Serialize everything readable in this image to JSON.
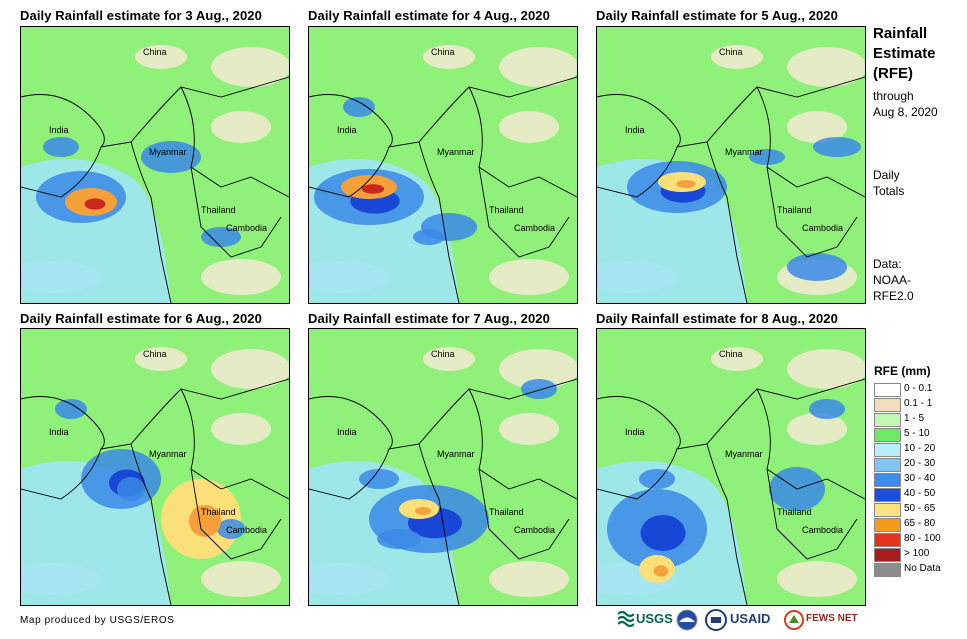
{
  "panels": [
    {
      "title": "Daily Rainfall estimate for 3 Aug., 2020",
      "labels": [
        "China",
        "India",
        "Myanmar",
        "Thailand",
        "Cambodia"
      ],
      "colors": {
        "base": "#8ff07a",
        "mid": "#9fe6f5",
        "heavy": "#3b88e6",
        "peak": "#1847d6",
        "spot1": "#f5a03a",
        "spot2": "#c8281e"
      }
    },
    {
      "title": "Daily Rainfall estimate for 4 Aug., 2020",
      "labels": [
        "China",
        "India",
        "Myanmar",
        "Thailand",
        "Cambodia"
      ],
      "colors": {
        "base": "#8ff07a",
        "mid": "#9fe6f5",
        "heavy": "#3b88e6",
        "peak": "#1847d6",
        "spot1": "#f5a03a",
        "spot2": "#c8281e"
      }
    },
    {
      "title": "Daily Rainfall estimate for 5 Aug., 2020",
      "labels": [
        "China",
        "India",
        "Myanmar",
        "Thailand",
        "Cambodia"
      ],
      "colors": {
        "base": "#8ff07a",
        "mid": "#9fe6f5",
        "heavy": "#3b88e6",
        "peak": "#1847d6",
        "spot1": "#fbe07a",
        "spot2": "#f5a03a"
      }
    },
    {
      "title": "Daily Rainfall estimate for 6 Aug., 2020",
      "labels": [
        "China",
        "India",
        "Myanmar",
        "Thailand",
        "Cambodia"
      ],
      "colors": {
        "base": "#8ff07a",
        "mid": "#9fe6f5",
        "heavy": "#3b88e6",
        "peak": "#1847d6",
        "spot1": "#fbe07a",
        "spot2": "#f5a03a"
      }
    },
    {
      "title": "Daily Rainfall estimate for 7 Aug., 2020",
      "labels": [
        "China",
        "India",
        "Myanmar",
        "Thailand",
        "Cambodia"
      ],
      "colors": {
        "base": "#8ff07a",
        "mid": "#9fe6f5",
        "heavy": "#3b88e6",
        "peak": "#1847d6",
        "spot1": "#fbe07a",
        "spot2": "#f5a03a"
      }
    },
    {
      "title": "Daily Rainfall estimate for 8 Aug., 2020",
      "labels": [
        "China",
        "India",
        "Myanmar",
        "Thailand",
        "Cambodia"
      ],
      "colors": {
        "base": "#8ff07a",
        "mid": "#9fe6f5",
        "heavy": "#3b88e6",
        "peak": "#1847d6",
        "spot1": "#fbe07a",
        "spot2": "#f5a03a"
      }
    }
  ],
  "sidebar": {
    "title_lines": [
      "Rainfall",
      "Estimate",
      "(RFE)"
    ],
    "through": [
      "through",
      "Aug 8, 2020"
    ],
    "totals": [
      "Daily",
      "Totals"
    ],
    "data_source": [
      "Data:",
      "NOAA-",
      "RFE2.0"
    ]
  },
  "legend": {
    "title": "RFE (mm)",
    "items": [
      {
        "label": "0 - 0.1",
        "color": "#ffffff"
      },
      {
        "label": "0.1 - 1",
        "color": "#f2dfc0"
      },
      {
        "label": "1 - 5",
        "color": "#c2f7b4"
      },
      {
        "label": "5 - 10",
        "color": "#6fe866"
      },
      {
        "label": "10 - 20",
        "color": "#b6eefb"
      },
      {
        "label": "20 - 30",
        "color": "#7cc5f5"
      },
      {
        "label": "30 - 40",
        "color": "#3e8cee"
      },
      {
        "label": "40 - 50",
        "color": "#1c4ee0"
      },
      {
        "label": "50 - 65",
        "color": "#fbe37f"
      },
      {
        "label": "65 - 80",
        "color": "#f59b1c"
      },
      {
        "label": "80 - 100",
        "color": "#e4341e"
      },
      {
        "label": "> 100",
        "color": "#a81e1e"
      },
      {
        "label": "No Data",
        "color": "#8c8c8c"
      }
    ]
  },
  "credit": "Map produced by USGS/EROS",
  "logos": {
    "usgs": "USGS",
    "usaid": "USAID",
    "fewsnet": "FEWS NET"
  }
}
